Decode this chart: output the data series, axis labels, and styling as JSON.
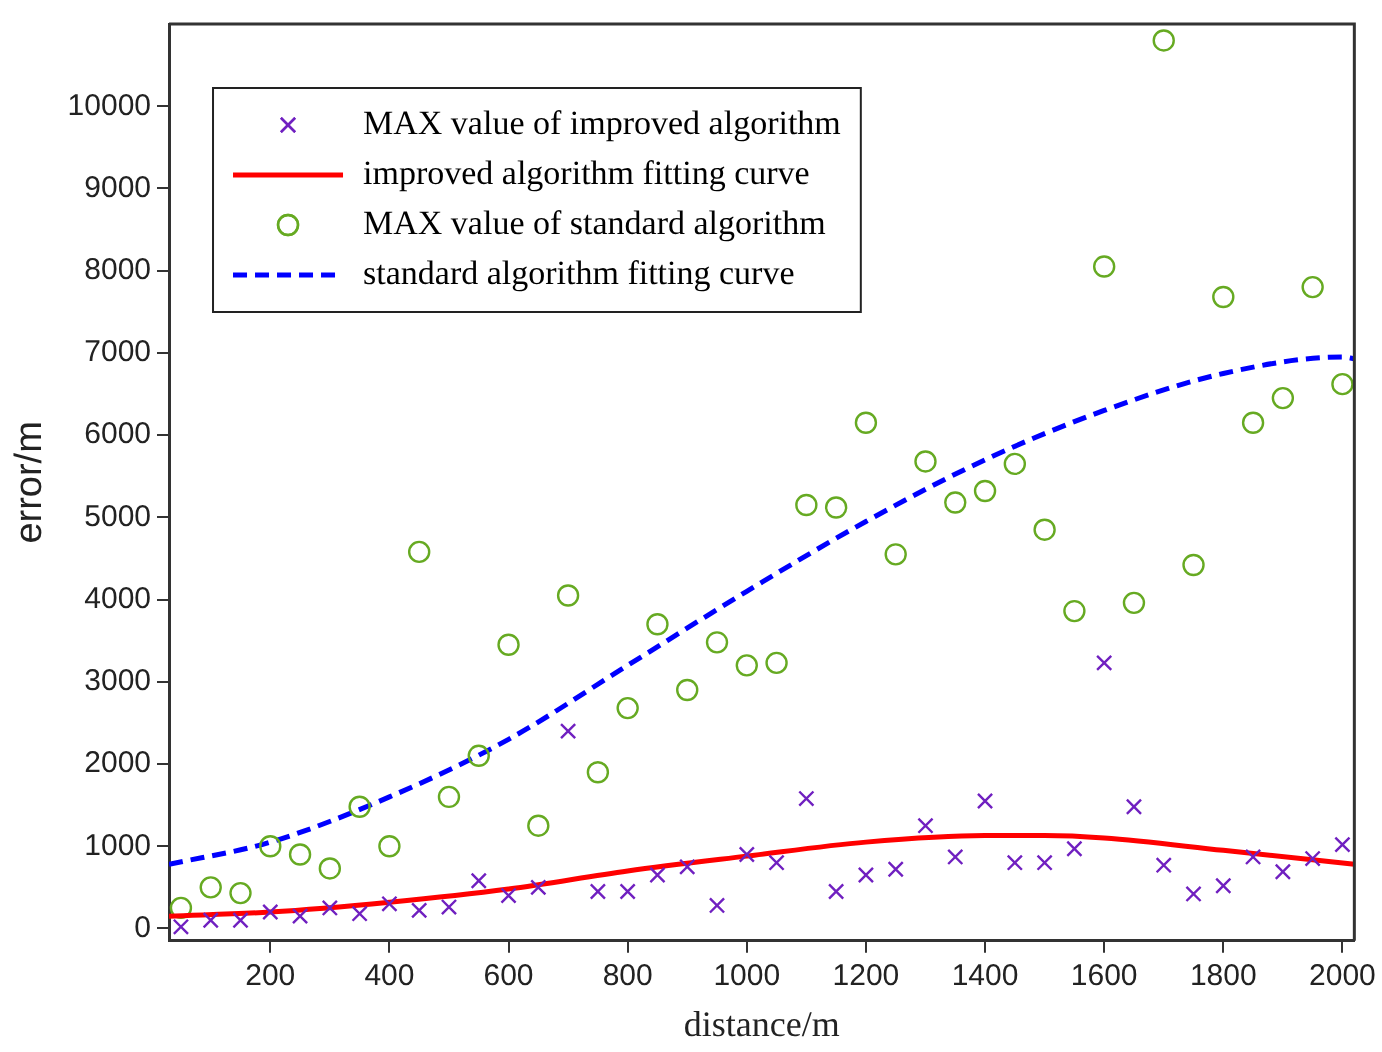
{
  "chart_data": {
    "type": "scatter",
    "xlabel": "distance/m",
    "ylabel": "error/m",
    "xlim": [
      30,
      2020
    ],
    "ylim": [
      -150,
      11000
    ],
    "xticks": [
      200,
      400,
      600,
      800,
      1000,
      1200,
      1400,
      1600,
      1800,
      2000
    ],
    "yticks": [
      0,
      1000,
      2000,
      3000,
      4000,
      5000,
      6000,
      7000,
      8000,
      9000,
      10000
    ],
    "grid": false,
    "legend": "top left",
    "series": [
      {
        "name": "MAX value of improved algorithm",
        "marker": "cross",
        "color": "#7020c0",
        "x": [
          50,
          100,
          150,
          200,
          250,
          300,
          350,
          400,
          450,
          500,
          550,
          600,
          650,
          700,
          750,
          800,
          850,
          900,
          950,
          1000,
          1050,
          1100,
          1150,
          1200,
          1250,
          1300,
          1350,
          1400,
          1450,
          1500,
          1550,
          1600,
          1650,
          1700,
          1750,
          1800,
          1850,
          1900,
          1950,
          2000
        ],
        "values": [
          20,
          100,
          100,
          200,
          150,
          250,
          180,
          300,
          220,
          260,
          580,
          400,
          500,
          2400,
          450,
          450,
          650,
          750,
          280,
          900,
          800,
          1580,
          450,
          650,
          720,
          1250,
          870,
          1550,
          800,
          800,
          970,
          3230,
          1480,
          770,
          420,
          520,
          870,
          690,
          850,
          1020
        ]
      },
      {
        "name": "improved algorithm fitting curve",
        "type": "line",
        "line_style": "solid",
        "color": "#ff0000",
        "x": [
          30,
          200,
          400,
          600,
          800,
          1000,
          1200,
          1400,
          1500,
          1600,
          1800,
          2020
        ],
        "values": [
          150,
          200,
          320,
          480,
          700,
          880,
          1050,
          1130,
          1130,
          1100,
          950,
          780
        ]
      },
      {
        "name": "MAX value of standard algorithm",
        "marker": "circle",
        "color": "#66aa22",
        "x": [
          50,
          100,
          150,
          200,
          250,
          300,
          350,
          400,
          450,
          500,
          550,
          600,
          650,
          700,
          750,
          800,
          850,
          900,
          950,
          1000,
          1050,
          1100,
          1150,
          1200,
          1250,
          1300,
          1350,
          1400,
          1450,
          1500,
          1550,
          1600,
          1650,
          1700,
          1750,
          1800,
          1850,
          1900,
          1950,
          2000
        ],
        "values": [
          250,
          500,
          430,
          1000,
          900,
          730,
          1480,
          1000,
          4580,
          1600,
          2100,
          3450,
          1250,
          4050,
          1900,
          2680,
          3700,
          2900,
          3480,
          3200,
          3230,
          5150,
          5120,
          6150,
          4550,
          5680,
          5180,
          5320,
          5650,
          4850,
          3860,
          8050,
          3960,
          10800,
          4420,
          7680,
          6150,
          6450,
          7800,
          6620
        ]
      },
      {
        "name": "standard algorithm fitting curve",
        "type": "line",
        "line_style": "dashed",
        "color": "#0000ff",
        "x": [
          30,
          200,
          400,
          600,
          800,
          1000,
          1200,
          1400,
          1600,
          1800,
          2000,
          2020
        ],
        "values": [
          780,
          1050,
          1600,
          2300,
          3200,
          4100,
          4950,
          5700,
          6300,
          6750,
          6950,
          6930
        ]
      }
    ]
  }
}
